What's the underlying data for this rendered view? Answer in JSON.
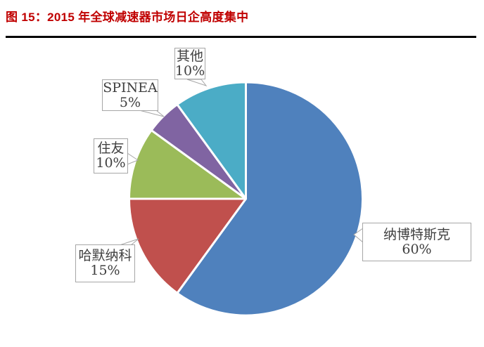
{
  "header": {
    "title": "图 15：2015 年全球减速器市场日企高度集中",
    "title_color": "#C00000",
    "rule_color": "#000000"
  },
  "chart_data": {
    "type": "pie",
    "title": "图 15：2015 年全球减速器市场日企高度集中",
    "unit": "%",
    "direction": "clockwise",
    "start_angle": "12-oclock",
    "legend_position": "none",
    "slices": [
      {
        "id": "nabtesco",
        "name": "纳博特斯克",
        "value": 60,
        "pct_label": "60%",
        "color": "#4F81BD"
      },
      {
        "id": "harmonic",
        "name": "哈默纳科",
        "value": 15,
        "pct_label": "15%",
        "color": "#C0504D"
      },
      {
        "id": "sumitomo",
        "name": "住友",
        "value": 10,
        "pct_label": "10%",
        "color": "#9BBB59"
      },
      {
        "id": "spinea",
        "name": "SPINEA",
        "value": 5,
        "pct_label": "5%",
        "color": "#8064A2"
      },
      {
        "id": "others",
        "name": "其他",
        "value": 10,
        "pct_label": "10%",
        "color": "#4BACC6"
      }
    ],
    "label_style": {
      "background": "#FFFFFF",
      "border_color": "#A6A6A6",
      "text_color": "#404040"
    }
  }
}
